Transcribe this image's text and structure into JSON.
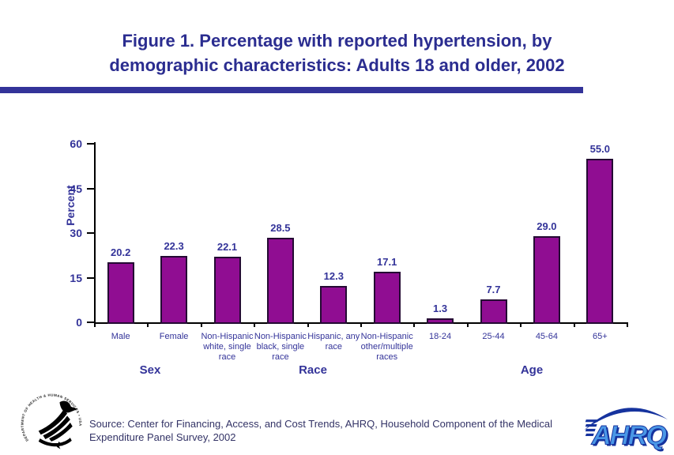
{
  "header": {
    "title_line1": "Figure 1. Percentage with reported hypertension, by",
    "title_line2": "demographic characteristics: Adults 18 and older, 2002",
    "title_color": "#2b2d90",
    "divider_color": "#333399"
  },
  "chart_data": {
    "type": "bar",
    "title": "Figure 1. Percentage with reported hypertension, by demographic characteristics: Adults 18 and older, 2002",
    "xlabel": "",
    "ylabel": "Percent",
    "ylim": [
      0,
      60
    ],
    "yticks": [
      0,
      15,
      30,
      45,
      60
    ],
    "grid": false,
    "legend": false,
    "bar_color": "#900d92",
    "bar_border_color": "#240a33",
    "text_color": "#333399",
    "categories": [
      "Male",
      "Female",
      "Non-Hispanic white, single race",
      "Non-Hispanic black, single race",
      "Hispanic, any race",
      "Non-Hispanic other/multiple races",
      "18-24",
      "25-44",
      "45-64",
      "65+"
    ],
    "category_label_lines": [
      [
        "Male"
      ],
      [
        "Female"
      ],
      [
        "Non-Hispanic",
        "white, single",
        "race"
      ],
      [
        "Non-Hispanic",
        "black, single",
        "race"
      ],
      [
        "Hispanic, any",
        "race"
      ],
      [
        "Non-Hispanic",
        "other/multiple",
        "races"
      ],
      [
        "18-24"
      ],
      [
        "25-44"
      ],
      [
        "45-64"
      ],
      [
        "65+"
      ]
    ],
    "values": [
      20.2,
      22.3,
      22.1,
      28.5,
      12.3,
      17.1,
      1.3,
      7.7,
      29.0,
      55.0
    ],
    "value_labels": [
      "20.2",
      "22.3",
      "22.1",
      "28.5",
      "12.3",
      "17.1",
      "1.3",
      "7.7",
      "29.0",
      "55.0"
    ],
    "groups": [
      {
        "label": "Sex",
        "start": 0,
        "end": 1
      },
      {
        "label": "Race",
        "start": 2,
        "end": 5
      },
      {
        "label": "Age",
        "start": 6,
        "end": 9
      }
    ]
  },
  "footer": {
    "source_line1": "Source: Center for Financing, Access, and Cost Trends, AHRQ, Household Component of the Medical",
    "source_line2": "Expenditure Panel Survey, 2002",
    "source_color": "#333366",
    "hhs_logo_name": "hhs-eagle-logo",
    "hhs_circle_text": "DEPARTMENT OF HEALTH & HUMAN SERVICES • USA",
    "ahrq_logo_text": "AHRQ"
  }
}
